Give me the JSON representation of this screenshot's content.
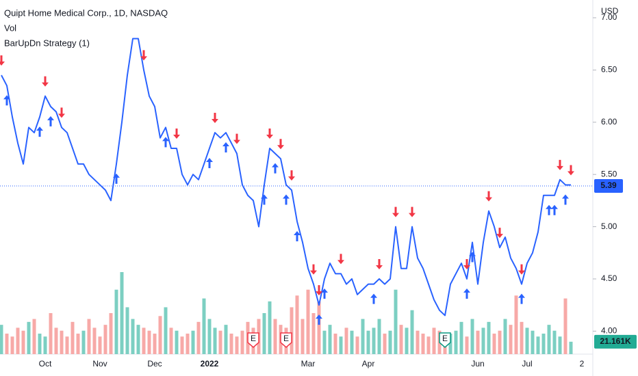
{
  "chart_data": {
    "type": "line",
    "title": "Quipt Home Medical Corp., 1D, NASDAQ",
    "indicators": [
      "Vol",
      "BarUpDn Strategy (1)"
    ],
    "currency": "USD",
    "categories": [
      null,
      null,
      null,
      null,
      null,
      null,
      null,
      null,
      "Oct",
      null,
      null,
      null,
      null,
      null,
      null,
      null,
      null,
      null,
      "Nov",
      null,
      null,
      null,
      null,
      null,
      null,
      null,
      null,
      null,
      "Dec",
      null,
      null,
      null,
      null,
      null,
      null,
      null,
      null,
      null,
      "2022",
      null,
      null,
      null,
      null,
      null,
      null,
      null,
      null,
      null,
      null,
      null,
      null,
      null,
      null,
      null,
      null,
      null,
      "Mar",
      null,
      null,
      null,
      null,
      null,
      null,
      null,
      null,
      null,
      null,
      "Apr",
      null,
      null,
      null,
      null,
      null,
      null,
      null,
      null,
      null,
      null,
      null,
      null,
      null,
      null,
      null,
      null,
      null,
      null,
      null,
      "Jun",
      null,
      null,
      null,
      null,
      null,
      null,
      null,
      null,
      "Jul",
      null,
      null,
      null,
      null,
      null,
      null,
      null,
      null,
      null,
      "2"
    ],
    "series": [
      {
        "name": "Quipt Home Medical Corp.",
        "color": "#2962ff",
        "values": [
          6.45,
          6.35,
          6.05,
          5.8,
          5.6,
          5.95,
          5.9,
          6.05,
          6.25,
          6.15,
          6.1,
          5.95,
          5.9,
          5.75,
          5.6,
          5.6,
          5.5,
          5.45,
          5.4,
          5.35,
          5.25,
          5.6,
          6.0,
          6.45,
          6.8,
          6.8,
          6.5,
          6.25,
          6.15,
          5.85,
          5.95,
          5.75,
          5.75,
          5.5,
          5.4,
          5.5,
          5.45,
          5.6,
          5.75,
          5.9,
          5.85,
          5.9,
          5.8,
          5.7,
          5.4,
          5.3,
          5.25,
          5.0,
          5.4,
          5.75,
          5.7,
          5.65,
          5.4,
          5.35,
          5.05,
          4.85,
          4.6,
          4.45,
          4.25,
          4.5,
          4.65,
          4.55,
          4.55,
          4.45,
          4.5,
          4.35,
          4.4,
          4.45,
          4.45,
          4.5,
          4.45,
          4.5,
          5.0,
          4.6,
          4.6,
          5.0,
          4.7,
          4.6,
          4.45,
          4.3,
          4.2,
          4.15,
          4.45,
          4.55,
          4.65,
          4.5,
          4.85,
          4.45,
          4.85,
          5.15,
          5.0,
          4.8,
          4.9,
          4.7,
          4.6,
          4.45,
          4.65,
          4.75,
          4.95,
          5.3,
          5.3,
          5.3,
          5.45,
          5.4,
          5.4,
          null,
          null
        ]
      },
      {
        "name": "Vol",
        "values": [
          50000,
          35000,
          30000,
          45000,
          40000,
          55000,
          60000,
          35000,
          30000,
          70000,
          45000,
          40000,
          30000,
          55000,
          35000,
          40000,
          60000,
          45000,
          30000,
          50000,
          70000,
          110000,
          140000,
          80000,
          60000,
          50000,
          45000,
          40000,
          35000,
          65000,
          80000,
          45000,
          40000,
          30000,
          35000,
          40000,
          55000,
          95000,
          60000,
          45000,
          40000,
          50000,
          35000,
          30000,
          40000,
          55000,
          45000,
          60000,
          70000,
          90000,
          60000,
          50000,
          45000,
          80000,
          100000,
          60000,
          110000,
          70000,
          90000,
          40000,
          50000,
          35000,
          30000,
          45000,
          40000,
          30000,
          60000,
          40000,
          45000,
          60000,
          35000,
          40000,
          110000,
          50000,
          45000,
          75000,
          40000,
          35000,
          30000,
          45000,
          40000,
          30000,
          35000,
          40000,
          55000,
          30000,
          60000,
          40000,
          45000,
          55000,
          35000,
          40000,
          60000,
          50000,
          100000,
          55000,
          45000,
          40000,
          30000,
          35000,
          50000,
          40000,
          30000,
          95000,
          21161,
          null,
          null
        ]
      }
    ],
    "volume_colors": {
      "up": "#7ccfc2",
      "down": "#f7a9a7"
    },
    "buy_signals": [
      1,
      7,
      9,
      21,
      30,
      38,
      41,
      48,
      50,
      52,
      54,
      58,
      59,
      68,
      85,
      86,
      95,
      100,
      101,
      103
    ],
    "sell_signals": [
      0,
      8,
      11,
      26,
      32,
      39,
      43,
      49,
      51,
      53,
      57,
      58,
      62,
      69,
      72,
      75,
      85,
      89,
      91,
      95,
      102,
      104
    ],
    "signal_colors": {
      "buy": "#2962ff",
      "sell": "#f23645"
    },
    "earnings": {
      "label": "E",
      "indices": [
        46,
        52,
        81
      ],
      "colors": [
        "#f23645",
        "#f23645",
        "#089981"
      ]
    },
    "ylim": [
      3.78,
      7.17
    ],
    "yticks": [
      {
        "value": 4,
        "label": "4.00"
      },
      {
        "value": 4.5,
        "label": "4.50"
      },
      {
        "value": 5,
        "label": "5.00"
      },
      {
        "value": 5.5,
        "label": "5.50"
      },
      {
        "value": 6,
        "label": "6.00"
      },
      {
        "value": 6.5,
        "label": "6.50"
      },
      {
        "value": 7,
        "label": "7.00"
      }
    ],
    "last_price": {
      "value": 5.39,
      "label": "5.39"
    },
    "last_volume": {
      "value": 21161,
      "label": "21.161K"
    }
  }
}
